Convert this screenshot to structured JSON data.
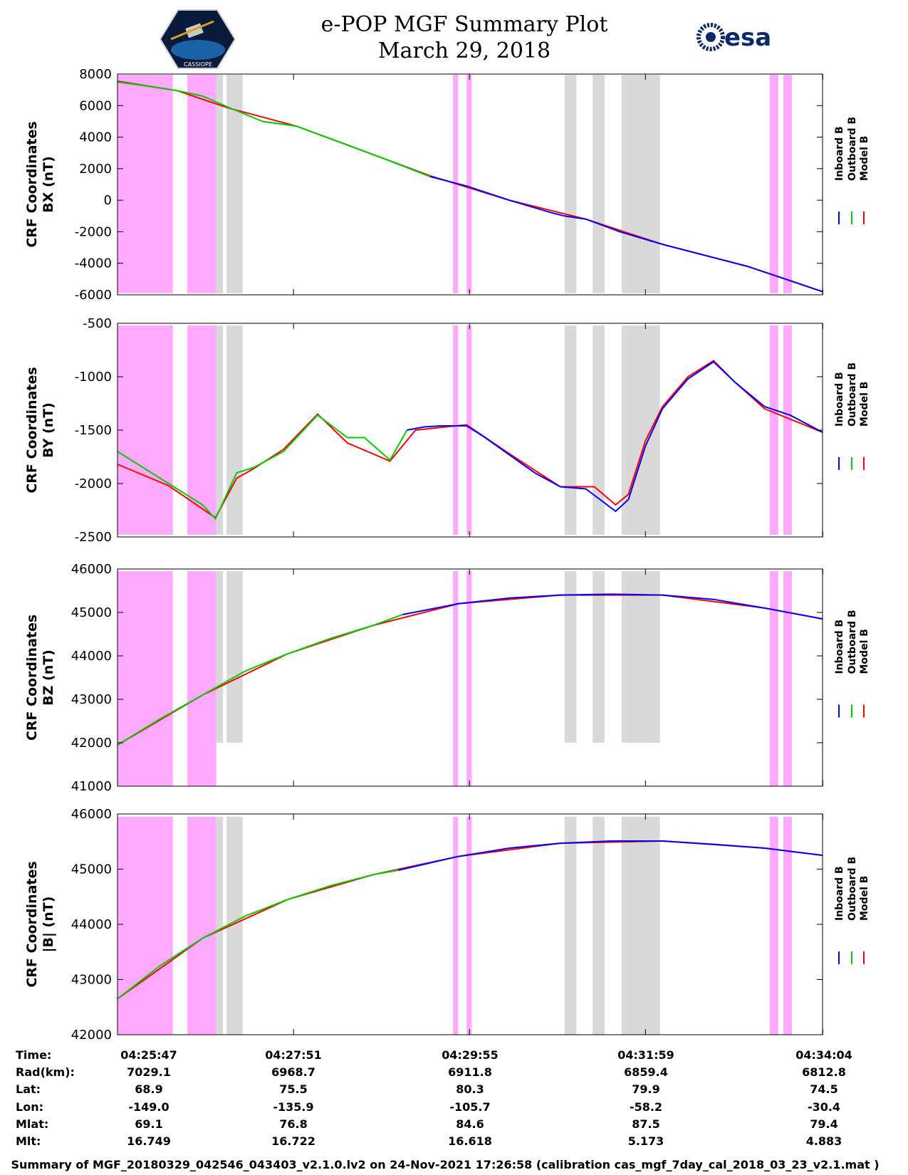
{
  "header": {
    "title_line1": "e-POP MGF Summary Plot",
    "title_line2": "March 29, 2018",
    "logo_left_text": "CASSIOPE",
    "logo_right_text": "esa"
  },
  "colors": {
    "inboard": "#0000ff",
    "outboard": "#00cc00",
    "model": "#ff0000",
    "pink_band": "#ffaaff",
    "gray_band": "#d9d9d9"
  },
  "legend": {
    "items": [
      {
        "label": "Inboard B",
        "color": "#0000ff"
      },
      {
        "label": "Outboard B",
        "color": "#00cc00"
      },
      {
        "label": "Model B",
        "color": "#ff0000"
      }
    ]
  },
  "chart_data": {
    "type": "line",
    "x_unit": "minutes after 04:25:47",
    "x_range": [
      0,
      8.28
    ],
    "x_ticks": [
      0,
      2.067,
      4.133,
      6.2,
      8.283
    ],
    "pink_bands": [
      [
        0,
        0.65
      ],
      [
        0.82,
        1.16
      ],
      [
        3.94,
        4.0
      ],
      [
        4.1,
        4.16
      ],
      [
        7.66,
        7.76
      ],
      [
        7.82,
        7.92
      ]
    ],
    "gray_bands": [
      [
        1.16,
        1.24
      ],
      [
        1.28,
        1.47
      ],
      [
        5.25,
        5.39
      ],
      [
        5.58,
        5.72
      ],
      [
        5.92,
        6.37
      ]
    ],
    "panels": [
      {
        "name": "bx",
        "ylabel_line1": "CRF Coordinates",
        "ylabel_line2": "BX (nT)",
        "ylim": [
          -6000,
          8000
        ],
        "yticks": [
          -6000,
          -4000,
          -2000,
          0,
          2000,
          4000,
          6000,
          8000
        ],
        "band_range": [
          -5900,
          7950
        ],
        "series": [
          {
            "name": "Inboard B",
            "color": "#0000ff",
            "x": [
              3.67,
              4.1,
              4.6,
              5.1,
              5.25,
              5.5,
              5.9,
              6.4,
              6.9,
              7.4,
              7.9,
              8.28
            ],
            "y": [
              1500,
              900,
              0,
              -800,
              -1000,
              -1200,
              -2000,
              -2800,
              -3500,
              -4200,
              -5100,
              -5800
            ]
          },
          {
            "name": "Outboard B",
            "color": "#00cc00",
            "x": [
              0,
              0.4,
              0.7,
              1.0,
              1.3,
              1.7,
              2.1,
              2.6,
              3.1,
              3.67
            ],
            "y": [
              7500,
              7200,
              6950,
              6600,
              5900,
              5000,
              4700,
              3700,
              2700,
              1500
            ]
          },
          {
            "name": "Model B",
            "color": "#ff0000",
            "x": [
              0,
              0.7,
              1.3,
              2.1,
              2.9,
              3.67,
              4.6,
              5.5,
              6.4,
              7.4,
              8.28
            ],
            "y": [
              7550,
              6950,
              5850,
              4700,
              3100,
              1550,
              0,
              -1200,
              -2800,
              -4200,
              -5800
            ]
          }
        ]
      },
      {
        "name": "by",
        "ylabel_line1": "CRF Coordinates",
        "ylabel_line2": "BY (nT)",
        "ylim": [
          -2500,
          -500
        ],
        "yticks": [
          -2500,
          -2000,
          -1500,
          -1000,
          -500
        ],
        "band_range": [
          -2480,
          -520
        ],
        "series": [
          {
            "name": "Inboard B",
            "color": "#0000ff",
            "x": [
              3.4,
              3.6,
              3.8,
              4.1,
              4.3,
              4.6,
              4.9,
              5.2,
              5.5,
              5.85,
              6.0,
              6.2,
              6.4,
              6.7,
              7.0,
              7.25,
              7.6,
              7.9,
              8.28
            ],
            "y": [
              -1500,
              -1470,
              -1460,
              -1460,
              -1560,
              -1730,
              -1900,
              -2030,
              -2050,
              -2260,
              -2150,
              -1650,
              -1300,
              -1020,
              -860,
              -1050,
              -1280,
              -1360,
              -1520
            ]
          },
          {
            "name": "Outboard B",
            "color": "#00cc00",
            "x": [
              0,
              0.2,
              0.6,
              1.0,
              1.15,
              1.4,
              1.6,
              1.95,
              2.35,
              2.7,
              2.9,
              3.2,
              3.4
            ],
            "y": [
              -1700,
              -1800,
              -2000,
              -2200,
              -2330,
              -1900,
              -1850,
              -1700,
              -1360,
              -1570,
              -1570,
              -1780,
              -1500
            ]
          },
          {
            "name": "Model B",
            "color": "#ff0000",
            "x": [
              0,
              0.6,
              1.15,
              1.4,
              1.6,
              1.95,
              2.35,
              2.7,
              3.2,
              3.5,
              4.1,
              4.6,
              5.2,
              5.6,
              5.85,
              6.0,
              6.2,
              6.4,
              6.7,
              7.0,
              7.25,
              7.6,
              8.28
            ],
            "y": [
              -1820,
              -2020,
              -2320,
              -1950,
              -1860,
              -1680,
              -1350,
              -1620,
              -1790,
              -1500,
              -1450,
              -1720,
              -2030,
              -2030,
              -2200,
              -2100,
              -1600,
              -1280,
              -1000,
              -850,
              -1050,
              -1300,
              -1520
            ]
          }
        ]
      },
      {
        "name": "bz",
        "ylabel_line1": "CRF Coordinates",
        "ylabel_line2": "BZ (nT)",
        "ylim": [
          41000,
          46000
        ],
        "yticks": [
          41000,
          42000,
          43000,
          44000,
          45000,
          46000
        ],
        "band_range": [
          41000,
          45950
        ],
        "gray_band_floor": 42000,
        "series": [
          {
            "name": "Inboard B",
            "color": "#0000ff",
            "x": [
              3.35,
              4.0,
              4.6,
              5.2,
              5.8,
              6.4,
              7.0,
              7.6,
              8.28
            ],
            "y": [
              44950,
              45200,
              45330,
              45400,
              45420,
              45400,
              45300,
              45100,
              44850
            ]
          },
          {
            "name": "Outboard B",
            "color": "#00cc00",
            "x": [
              0,
              0.5,
              1.0,
              1.5,
              2.0,
              2.5,
              3.0,
              3.35
            ],
            "y": [
              41950,
              42550,
              43100,
              43650,
              44050,
              44400,
              44700,
              44950
            ]
          },
          {
            "name": "Model B",
            "color": "#ff0000",
            "x": [
              0,
              1.0,
              2.0,
              3.0,
              4.0,
              5.2,
              6.4,
              7.6,
              8.28
            ],
            "y": [
              41950,
              43100,
              44050,
              44700,
              45200,
              45400,
              45400,
              45100,
              44850
            ]
          }
        ]
      },
      {
        "name": "bmag",
        "ylabel_line1": "CRF Coordinates",
        "ylabel_line2": "|B| (nT)",
        "ylim": [
          42000,
          46000
        ],
        "yticks": [
          42000,
          43000,
          44000,
          45000,
          46000
        ],
        "band_range": [
          42000,
          45950
        ],
        "series": [
          {
            "name": "Inboard B",
            "color": "#0000ff",
            "x": [
              3.3,
              4.0,
              4.6,
              5.2,
              5.8,
              6.4,
              7.0,
              7.6,
              8.28
            ],
            "y": [
              44980,
              45230,
              45380,
              45470,
              45510,
              45510,
              45450,
              45380,
              45250
            ]
          },
          {
            "name": "Outboard B",
            "color": "#00cc00",
            "x": [
              0,
              0.5,
              1.0,
              1.5,
              2.0,
              2.5,
              3.0,
              3.3
            ],
            "y": [
              42650,
              43250,
              43750,
              44150,
              44450,
              44700,
              44900,
              44980
            ]
          },
          {
            "name": "Model B",
            "color": "#ff0000",
            "x": [
              0,
              1.0,
              2.0,
              3.0,
              4.0,
              5.2,
              6.4,
              7.6,
              8.28
            ],
            "y": [
              42650,
              43750,
              44450,
              44900,
              45230,
              45470,
              45510,
              45380,
              45250
            ]
          }
        ]
      }
    ]
  },
  "info_table": {
    "row_labels": [
      "Time:",
      "Rad(km):",
      "Lat:",
      "Lon:",
      "Mlat:",
      "Mlt:"
    ],
    "columns": [
      [
        "04:25:47",
        "7029.1",
        "68.9",
        "-149.0",
        "69.1",
        "16.749"
      ],
      [
        "04:27:51",
        "6968.7",
        "75.5",
        "-135.9",
        "76.8",
        "16.722"
      ],
      [
        "04:29:55",
        "6911.8",
        "80.3",
        "-105.7",
        "84.6",
        "16.618"
      ],
      [
        "04:31:59",
        "6859.4",
        "79.9",
        "-58.2",
        "87.5",
        "5.173"
      ],
      [
        "04:34:04",
        "6812.8",
        "74.5",
        "-30.4",
        "79.4",
        "4.883"
      ]
    ]
  },
  "footer": "Summary of MGF_20180329_042546_043403_v2.1.0.lv2 on 24-Nov-2021 17:26:58 (calibration cas_mgf_7day_cal_2018_03_23_v2.1.mat )"
}
